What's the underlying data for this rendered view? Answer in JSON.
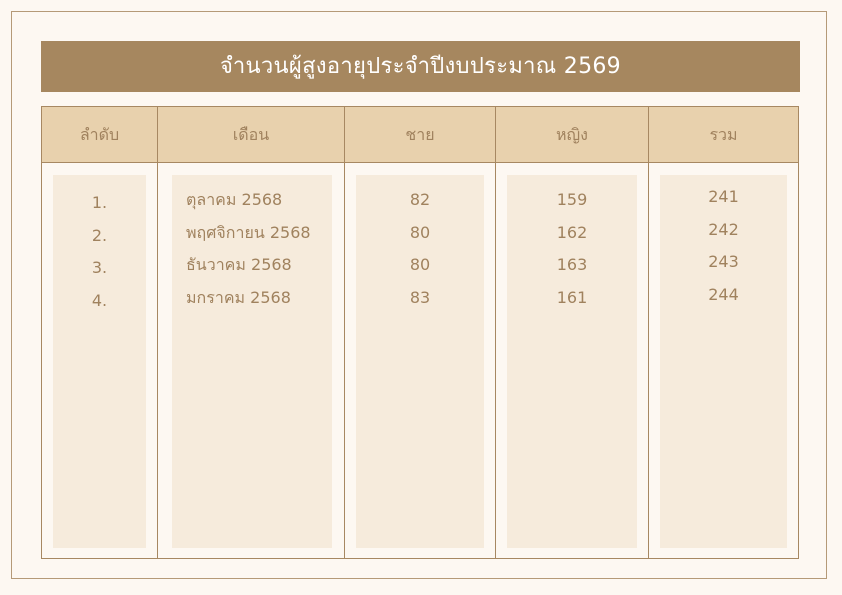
{
  "title": "จำนวนผู้สูงอายุประจำปีงบประมาณ  2569",
  "columns": [
    "ลำดับ",
    "เดือน",
    "ชาย",
    "หญิง",
    "รวม"
  ],
  "rows": [
    {
      "no": "1.",
      "month": "ตุลาคม 2568",
      "male": "82",
      "female": "159",
      "total": "241"
    },
    {
      "no": "2.",
      "month": "พฤศจิกายน 2568",
      "male": "80",
      "female": "162",
      "total": "242"
    },
    {
      "no": "3.",
      "month": "ธันวาคม 2568",
      "male": "80",
      "female": "163",
      "total": "243"
    },
    {
      "no": "4.",
      "month": "มกราคม 2568",
      "male": "83",
      "female": "161",
      "total": "244"
    }
  ],
  "colors": {
    "title_bg": "#a6875f",
    "header_bg": "#e8d1ad",
    "panel_bg": "#f6ebdc",
    "text": "#a0825e"
  }
}
